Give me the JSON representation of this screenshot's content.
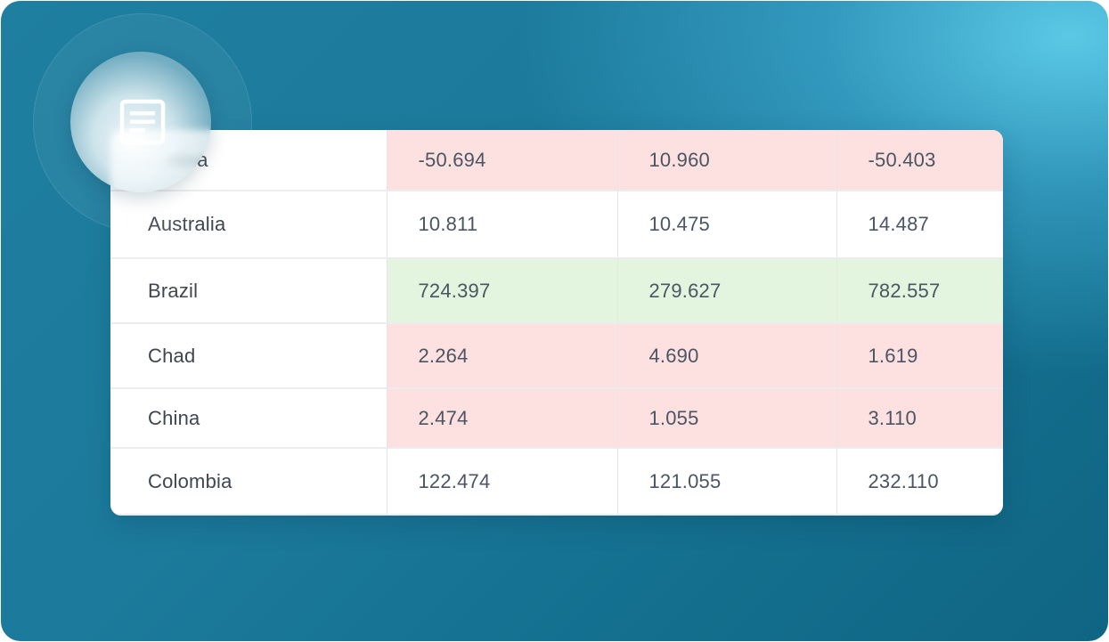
{
  "table": {
    "rows": [
      {
        "name": "...ntina",
        "v1": "-50.694",
        "v2": "10.960",
        "v3": "-50.403",
        "tone": "neg"
      },
      {
        "name": "Australia",
        "v1": "10.811",
        "v2": "10.475",
        "v3": "14.487",
        "tone": "none"
      },
      {
        "name": "Brazil",
        "v1": "724.397",
        "v2": "279.627",
        "v3": "782.557",
        "tone": "pos"
      },
      {
        "name": "Chad",
        "v1": "2.264",
        "v2": "4.690",
        "v3": "1.619",
        "tone": "neg"
      },
      {
        "name": "China",
        "v1": "2.474",
        "v2": "1.055",
        "v3": "3.110",
        "tone": "neg"
      },
      {
        "name": "Colombia",
        "v1": "122.474",
        "v2": "121.055",
        "v3": "232.110",
        "tone": "none"
      }
    ]
  },
  "icons": {
    "badge": "document-icon"
  },
  "colors": {
    "negative_cell": "#fde0e0",
    "positive_cell": "#e3f5de",
    "background_dark": "#0f6583",
    "background_light": "#5fcdeb"
  }
}
